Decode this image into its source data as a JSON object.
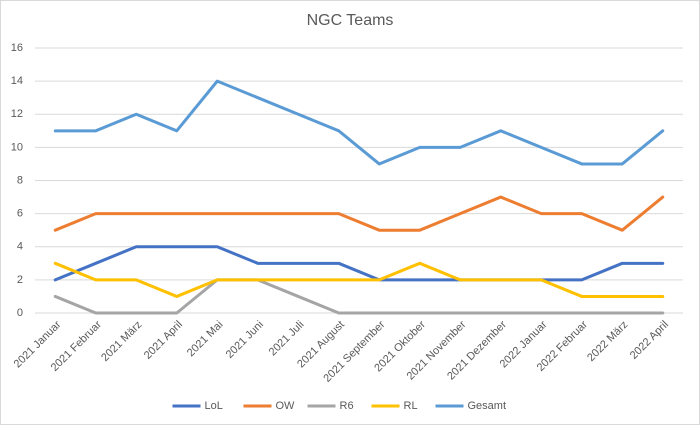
{
  "chart_data": {
    "type": "line",
    "title": "NGC Teams",
    "categories": [
      "2021 Januar",
      "2021 Februar",
      "2021 März",
      "2021 April",
      "2021 Mai",
      "2021 Juni",
      "2021 Juli",
      "2021 August",
      "2021 September",
      "2021 Oktober",
      "2021 November",
      "2021 Dezember",
      "2022 Januar",
      "2022 Februar",
      "2022 März",
      "2022 April"
    ],
    "series": [
      {
        "name": "LoL",
        "color": "#4472c4",
        "values": [
          2,
          3,
          4,
          4,
          4,
          3,
          3,
          3,
          2,
          2,
          2,
          2,
          2,
          2,
          3,
          3
        ]
      },
      {
        "name": "OW",
        "color": "#ed7d31",
        "values": [
          5,
          6,
          6,
          6,
          6,
          6,
          6,
          6,
          5,
          5,
          6,
          7,
          6,
          6,
          5,
          7
        ]
      },
      {
        "name": "R6",
        "color": "#a5a5a5",
        "values": [
          1,
          0,
          0,
          0,
          2,
          2,
          1,
          0,
          0,
          0,
          0,
          0,
          0,
          0,
          0,
          0
        ]
      },
      {
        "name": "RL",
        "color": "#ffc000",
        "values": [
          3,
          2,
          2,
          1,
          2,
          2,
          2,
          2,
          2,
          3,
          2,
          2,
          2,
          1,
          1,
          1
        ]
      },
      {
        "name": "Gesamt",
        "color": "#5b9bd5",
        "values": [
          11,
          11,
          12,
          11,
          14,
          13,
          12,
          11,
          9,
          10,
          10,
          11,
          10,
          9,
          9,
          11
        ]
      }
    ],
    "ylim": [
      0,
      16
    ],
    "yticks": [
      0,
      2,
      4,
      6,
      8,
      10,
      12,
      14,
      16
    ],
    "grid": true,
    "legend": "bottom"
  }
}
